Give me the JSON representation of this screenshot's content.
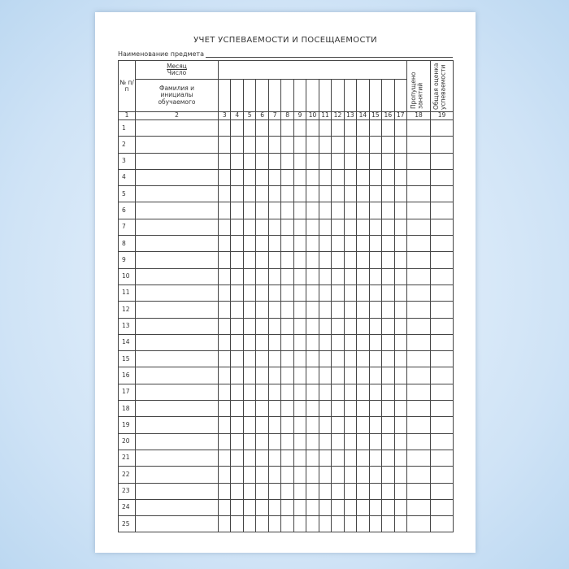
{
  "title": "УЧЕТ УСПЕВАЕМОСТИ И ПОСЕЩАЕМОСТИ",
  "subject_label": "Наименование предмета",
  "header": {
    "num": "№ п/п",
    "month": "Месяц",
    "day": "Число",
    "name": "Фамилия и инициалы обучаемого",
    "missed": "Пропущено занятий",
    "grade": "Общая оценка успеваемости"
  },
  "column_numbers": [
    "1",
    "2",
    "3",
    "4",
    "5",
    "6",
    "7",
    "8",
    "9",
    "10",
    "11",
    "12",
    "13",
    "14",
    "15",
    "16",
    "17",
    "18",
    "19"
  ],
  "rows": [
    "1",
    "2",
    "3",
    "4",
    "5",
    "6",
    "7",
    "8",
    "9",
    "10",
    "11",
    "12",
    "13",
    "14",
    "15",
    "16",
    "17",
    "18",
    "19",
    "20",
    "21",
    "22",
    "23",
    "24",
    "25"
  ]
}
